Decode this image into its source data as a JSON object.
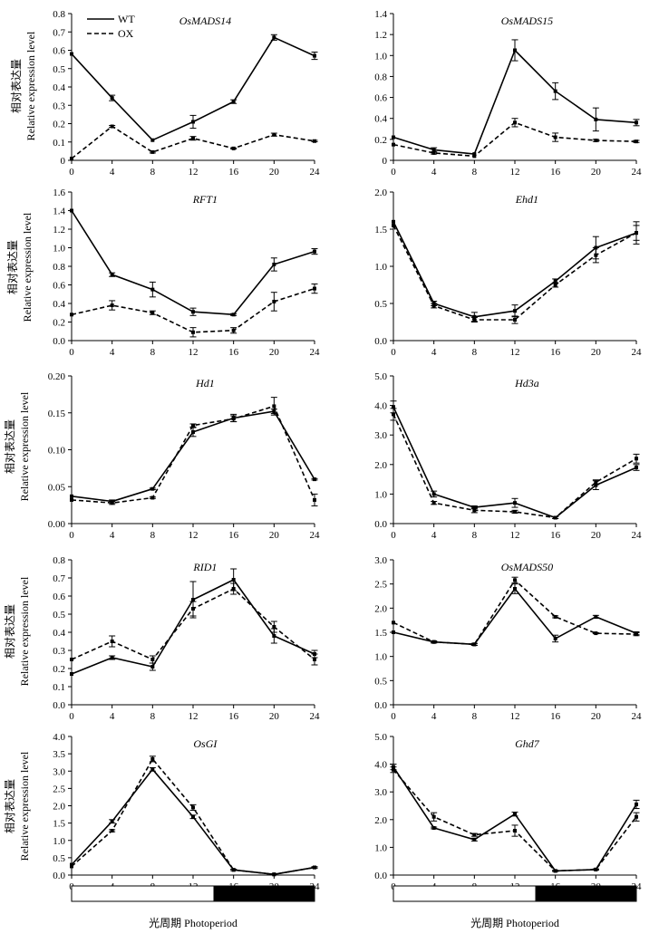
{
  "figure": {
    "y_axis_label_cn": "相对表达量",
    "y_axis_label_en": "Relative expression level",
    "x_axis_label": "光周期 Photoperiod",
    "legend": [
      "WT",
      "OX"
    ]
  },
  "chart_data": [
    {
      "type": "line",
      "title": "OsMADS14",
      "x": [
        0,
        4,
        8,
        12,
        16,
        20,
        24
      ],
      "ylim": [
        0,
        0.8
      ],
      "yticks": [
        "0",
        "0.1",
        "0.2",
        "0.3",
        "0.4",
        "0.5",
        "0.6",
        "0.7",
        "0.8"
      ],
      "series": [
        {
          "name": "WT",
          "values": [
            0.58,
            0.34,
            0.11,
            0.21,
            0.32,
            0.67,
            0.57
          ],
          "errors": [
            0.0,
            0.015,
            0.0,
            0.035,
            0.01,
            0.015,
            0.02
          ]
        },
        {
          "name": "OX",
          "values": [
            0.01,
            0.185,
            0.045,
            0.12,
            0.065,
            0.14,
            0.105
          ],
          "errors": [
            0.0,
            0.005,
            0.005,
            0.01,
            0.003,
            0.008,
            0.004
          ]
        }
      ]
    },
    {
      "type": "line",
      "title": "OsMADS15",
      "x": [
        0,
        4,
        8,
        12,
        16,
        20,
        24
      ],
      "ylim": [
        0,
        1.4
      ],
      "yticks": [
        "0",
        "0.2",
        "0.4",
        "0.6",
        "0.8",
        "1.0",
        "1.2",
        "1.4"
      ],
      "series": [
        {
          "name": "WT",
          "values": [
            0.22,
            0.1,
            0.06,
            1.05,
            0.66,
            0.39,
            0.36
          ],
          "errors": [
            0.0,
            0.02,
            0.0,
            0.1,
            0.08,
            0.11,
            0.03
          ]
        },
        {
          "name": "OX",
          "values": [
            0.15,
            0.07,
            0.04,
            0.36,
            0.22,
            0.19,
            0.18
          ],
          "errors": [
            0.0,
            0.01,
            0.0,
            0.04,
            0.04,
            0.01,
            0.01
          ]
        }
      ]
    },
    {
      "type": "line",
      "title": "RFT1",
      "x": [
        0,
        4,
        8,
        12,
        16,
        20,
        24
      ],
      "ylim": [
        0,
        1.6
      ],
      "yticks": [
        "0.0",
        "0.2",
        "0.4",
        "0.6",
        "0.8",
        "1.0",
        "1.2",
        "1.4",
        "1.6"
      ],
      "series": [
        {
          "name": "WT",
          "values": [
            1.4,
            0.71,
            0.55,
            0.31,
            0.28,
            0.82,
            0.96
          ],
          "errors": [
            0.0,
            0.02,
            0.08,
            0.04,
            0.01,
            0.07,
            0.03
          ]
        },
        {
          "name": "OX",
          "values": [
            0.28,
            0.38,
            0.3,
            0.09,
            0.11,
            0.42,
            0.56
          ],
          "errors": [
            0.0,
            0.05,
            0.02,
            0.05,
            0.03,
            0.1,
            0.05
          ]
        }
      ]
    },
    {
      "type": "line",
      "title": "Ehd1",
      "x": [
        0,
        4,
        8,
        12,
        16,
        20,
        24
      ],
      "ylim": [
        0,
        2.0
      ],
      "yticks": [
        "0.0",
        "0.5",
        "1.0",
        "1.5",
        "2.0"
      ],
      "series": [
        {
          "name": "WT",
          "values": [
            1.6,
            0.5,
            0.32,
            0.4,
            0.8,
            1.25,
            1.45
          ],
          "errors": [
            0.0,
            0.03,
            0.06,
            0.08,
            0.03,
            0.15,
            0.15
          ]
        },
        {
          "name": "OX",
          "values": [
            1.55,
            0.47,
            0.28,
            0.28,
            0.75,
            1.15,
            1.45
          ],
          "errors": [
            0.0,
            0.03,
            0.03,
            0.05,
            0.03,
            0.1,
            0.1
          ]
        }
      ]
    },
    {
      "type": "line",
      "title": "Hd1",
      "x": [
        0,
        4,
        8,
        12,
        16,
        20,
        24
      ],
      "ylim": [
        0,
        0.2
      ],
      "yticks": [
        "0.00",
        "0.05",
        "0.10",
        "0.15",
        "0.20"
      ],
      "series": [
        {
          "name": "WT",
          "values": [
            0.037,
            0.03,
            0.047,
            0.124,
            0.143,
            0.152,
            0.06
          ],
          "errors": [
            0.0,
            0.002,
            0.001,
            0.006,
            0.005,
            0.003,
            0.001
          ]
        },
        {
          "name": "OX",
          "values": [
            0.032,
            0.028,
            0.035,
            0.133,
            0.142,
            0.159,
            0.032
          ],
          "errors": [
            0.0,
            0.002,
            0.001,
            0.002,
            0.004,
            0.012,
            0.008
          ]
        }
      ]
    },
    {
      "type": "line",
      "title": "Hd3a",
      "x": [
        0,
        4,
        8,
        12,
        16,
        20,
        24
      ],
      "ylim": [
        0,
        5.0
      ],
      "yticks": [
        "0.0",
        "1.0",
        "2.0",
        "3.0",
        "4.0",
        "5.0"
      ],
      "series": [
        {
          "name": "WT",
          "values": [
            3.95,
            1.0,
            0.55,
            0.7,
            0.2,
            1.3,
            1.9
          ],
          "errors": [
            0.2,
            0.1,
            0.05,
            0.15,
            0.03,
            0.15,
            0.1
          ]
        },
        {
          "name": "OX",
          "values": [
            3.7,
            0.7,
            0.45,
            0.4,
            0.2,
            1.4,
            2.2
          ],
          "errors": [
            0.2,
            0.05,
            0.08,
            0.05,
            0.03,
            0.08,
            0.15
          ]
        }
      ]
    },
    {
      "type": "line",
      "title": "RID1",
      "x": [
        0,
        4,
        8,
        12,
        16,
        20,
        24
      ],
      "ylim": [
        0,
        0.8
      ],
      "yticks": [
        "0.0",
        "0.1",
        "0.2",
        "0.3",
        "0.4",
        "0.5",
        "0.6",
        "0.7",
        "0.8"
      ],
      "series": [
        {
          "name": "WT",
          "values": [
            0.17,
            0.26,
            0.21,
            0.58,
            0.69,
            0.38,
            0.28
          ],
          "errors": [
            0.0,
            0.01,
            0.02,
            0.1,
            0.06,
            0.04,
            0.02
          ]
        },
        {
          "name": "OX",
          "values": [
            0.25,
            0.35,
            0.25,
            0.53,
            0.64,
            0.43,
            0.25
          ],
          "errors": [
            0.0,
            0.03,
            0.02,
            0.04,
            0.03,
            0.03,
            0.03
          ]
        }
      ]
    },
    {
      "type": "line",
      "title": "OsMADS50",
      "x": [
        0,
        4,
        8,
        12,
        16,
        20,
        24
      ],
      "ylim": [
        0,
        3.0
      ],
      "yticks": [
        "0.0",
        "0.5",
        "1.0",
        "1.5",
        "2.0",
        "2.5",
        "3.0"
      ],
      "series": [
        {
          "name": "WT",
          "values": [
            1.5,
            1.3,
            1.25,
            2.4,
            1.37,
            1.82,
            1.48
          ],
          "errors": [
            0.0,
            0.02,
            0.02,
            0.1,
            0.07,
            0.03,
            0.03
          ]
        },
        {
          "name": "OX",
          "values": [
            1.7,
            1.3,
            1.25,
            2.58,
            1.82,
            1.48,
            1.46
          ],
          "errors": [
            0.0,
            0.02,
            0.02,
            0.06,
            0.02,
            0.01,
            0.03
          ]
        }
      ]
    },
    {
      "type": "line",
      "title": "OsGI",
      "x": [
        0,
        4,
        8,
        12,
        16,
        20,
        24
      ],
      "ylim": [
        0,
        4.0
      ],
      "yticks": [
        "0.0",
        "0.5",
        "1.0",
        "1.5",
        "2.0",
        "2.5",
        "3.0",
        "3.5",
        "4.0"
      ],
      "series": [
        {
          "name": "WT",
          "values": [
            0.3,
            1.55,
            3.05,
            1.68,
            0.15,
            0.02,
            0.22
          ],
          "errors": [
            0.0,
            0.05,
            0.05,
            0.05,
            0.02,
            0.01,
            0.02
          ]
        },
        {
          "name": "OX",
          "values": [
            0.25,
            1.28,
            3.35,
            1.95,
            0.15,
            0.02,
            0.22
          ],
          "errors": [
            0.0,
            0.03,
            0.08,
            0.08,
            0.02,
            0.01,
            0.02
          ]
        }
      ]
    },
    {
      "type": "line",
      "title": "Ghd7",
      "x": [
        0,
        4,
        8,
        12,
        16,
        20,
        24
      ],
      "ylim": [
        0,
        5.0
      ],
      "yticks": [
        "0.0",
        "1.0",
        "2.0",
        "3.0",
        "4.0",
        "5.0"
      ],
      "series": [
        {
          "name": "WT",
          "values": [
            3.9,
            1.7,
            1.28,
            2.2,
            0.15,
            0.2,
            2.55
          ],
          "errors": [
            0.1,
            0.03,
            0.05,
            0.07,
            0.02,
            0.02,
            0.15
          ]
        },
        {
          "name": "OX",
          "values": [
            3.8,
            2.1,
            1.45,
            1.6,
            0.15,
            0.2,
            2.1
          ],
          "errors": [
            0.1,
            0.15,
            0.05,
            0.2,
            0.02,
            0.02,
            0.15
          ]
        }
      ]
    }
  ]
}
